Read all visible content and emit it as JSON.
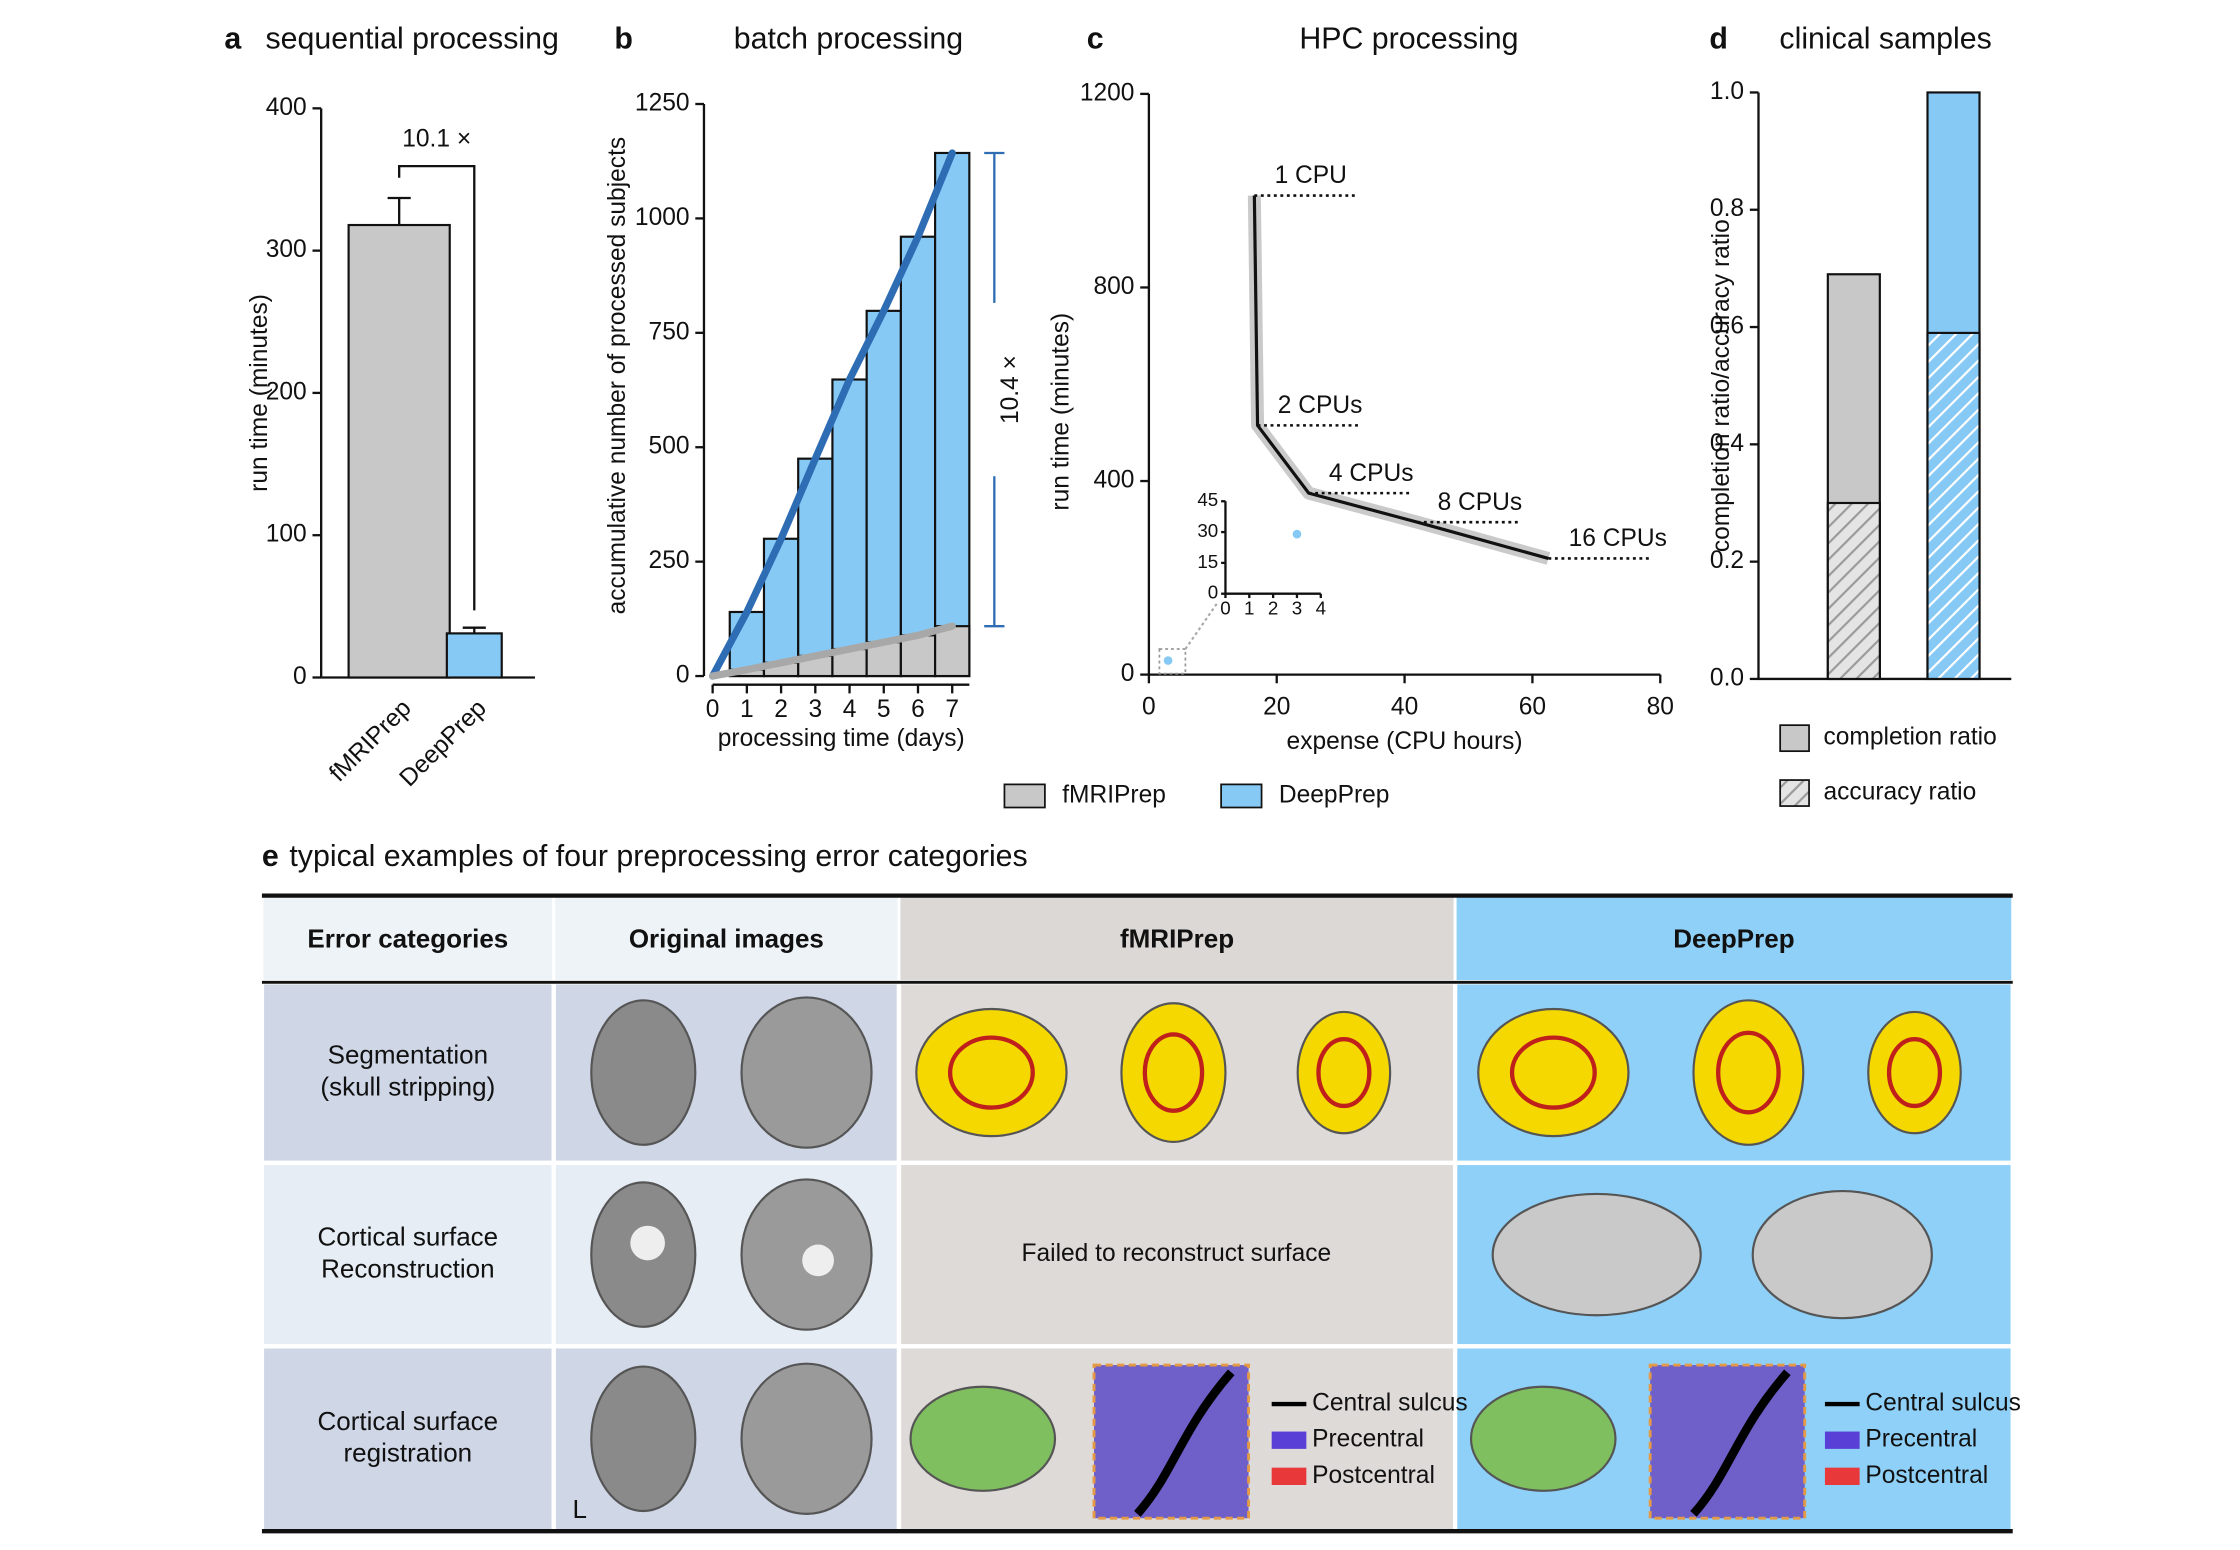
{
  "chart_data": [
    {
      "type": "bar",
      "label": "a",
      "title": "sequential processing",
      "categories": [
        "fMRIPrep",
        "DeepPrep"
      ],
      "values": [
        318,
        31
      ],
      "errors": [
        19,
        4
      ],
      "colors": [
        "#c8c8c8",
        "#86c9f5"
      ],
      "ylim": [
        0,
        400
      ],
      "yticks": [
        0,
        100,
        200,
        300,
        400
      ],
      "ylabel": "run time (minutes)",
      "annotation": "10.1 ×"
    },
    {
      "type": "bar_line",
      "label": "b",
      "title": "batch processing",
      "x": [
        0,
        1,
        2,
        3,
        4,
        5,
        6,
        7
      ],
      "series": [
        {
          "name": "DeepPrep",
          "color": "#86c9f5",
          "line_color": "#2e6db4",
          "values": [
            0,
            140,
            300,
            475,
            648,
            798,
            960,
            1143
          ]
        },
        {
          "name": "fMRIPrep",
          "color": "#c8c8c8",
          "line_color": "#a8a8a8",
          "values": [
            0,
            14,
            29,
            44,
            59,
            74,
            89,
            109
          ]
        }
      ],
      "xlim": [
        0,
        7.5
      ],
      "xticks": [
        0,
        1,
        2,
        3,
        4,
        5,
        6,
        7
      ],
      "ylim": [
        0,
        1250
      ],
      "yticks": [
        0,
        250,
        500,
        750,
        1000,
        1250
      ],
      "xlabel": "processing time (days)",
      "ylabel": "accumulative number of processed subjects",
      "annotation": "10.4 ×"
    },
    {
      "type": "line",
      "label": "c",
      "title": "HPC processing",
      "series": [
        {
          "name": "fMRIPrep",
          "color": "#c8c8c8",
          "line_color": "#111111",
          "x": [
            16.5,
            17,
            25,
            42,
            62.5
          ],
          "values": [
            990,
            515,
            375,
            315,
            240
          ],
          "point_labels": [
            "1 CPU",
            "2 CPUs",
            "4 CPUs",
            "8 CPUs",
            "16 CPUs"
          ]
        },
        {
          "name": "DeepPrep",
          "color": "#86c9f5",
          "x": [
            3
          ],
          "values": [
            29
          ]
        }
      ],
      "xlim": [
        0,
        80
      ],
      "xticks": [
        0,
        20,
        40,
        60,
        80
      ],
      "ylim": [
        0,
        1200
      ],
      "yticks": [
        0,
        400,
        800,
        1200
      ],
      "xlabel": "expense (CPU hours)",
      "ylabel": "run time (minutes)",
      "inset": {
        "xlim": [
          0,
          4
        ],
        "ylim": [
          0,
          45
        ],
        "xticks": [
          0,
          1,
          2,
          3,
          4
        ],
        "yticks": [
          0,
          15,
          30,
          45
        ]
      },
      "legend": "bottom"
    },
    {
      "type": "bar",
      "label": "d",
      "title": "clinical samples",
      "categories": [
        null,
        null
      ],
      "series": [
        {
          "name": "completion ratio",
          "values": [
            0.69,
            1.0
          ]
        },
        {
          "name": "accuracy ratio",
          "values": [
            0.3,
            0.59
          ],
          "pattern": "hatch"
        }
      ],
      "colors": [
        "#c8c8c8",
        "#86c9f5"
      ],
      "ylim": [
        0,
        1
      ],
      "yticks": [
        {
          "value": 0,
          "label": "0.0"
        },
        {
          "value": 0.2,
          "label": "0.2"
        },
        {
          "value": 0.4,
          "label": "0.4"
        },
        {
          "value": 0.6,
          "label": "0.6"
        },
        {
          "value": 0.8,
          "label": "0.8"
        },
        {
          "value": 1,
          "label": "1.0"
        }
      ],
      "ylabel": "completion ratio/accuracy ratio"
    }
  ],
  "table": {
    "label": "e",
    "title": "typical examples of four preprocessing error categories",
    "header": [
      "Error categories",
      "Original images",
      "fMRIPrep",
      "DeepPrep"
    ],
    "rows": [
      {
        "category": [
          "Segmentation",
          "(skull stripping)"
        ]
      },
      {
        "category": [
          "Cortical surface",
          "Reconstruction"
        ],
        "fmriprep_text": "Failed to reconstruct surface"
      },
      {
        "category": [
          "Cortical surface",
          "registration"
        ],
        "original_mark": "L",
        "fmriprep_legend": [
          "Central sulcus",
          "Precentral",
          "Postcentral"
        ],
        "deepprep_legend": [
          "Central sulcus",
          "Precentral",
          "Postcentral"
        ],
        "legend_colors": [
          "#000000",
          "#5a3fd6",
          "#e8383a"
        ]
      }
    ]
  }
}
